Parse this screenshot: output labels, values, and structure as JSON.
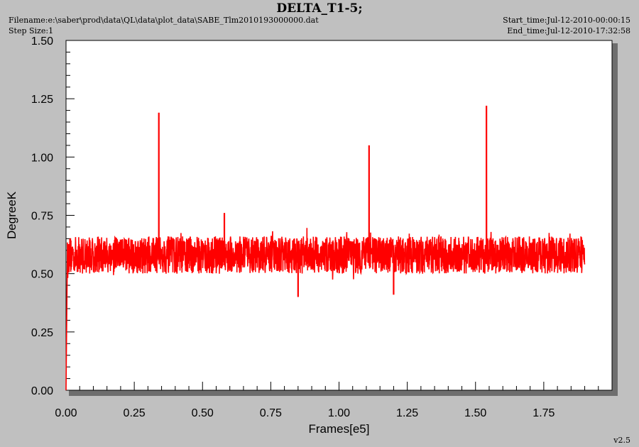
{
  "header": {
    "title": "DELTA_T1-5;",
    "filename": "Filename:e:\\saber\\prod\\data\\QL\\data\\plot_data\\SABE_Tlm2010193000000.dat",
    "step_size": "Step Size:1",
    "start_time": "Start_time:Jul-12-2010-00:00:15",
    "end_time": "End_time:Jul-12-2010-17:32:58",
    "version": "v2.5"
  },
  "colors": {
    "background": "#c0c0c0",
    "plot_area": "#ffffff",
    "series": "#ff0000",
    "shadow": "#6e6e6e"
  },
  "chart_data": {
    "type": "line",
    "title": "DELTA_T1-5;",
    "xlabel": "Frames[e5]",
    "ylabel": "DegreeK",
    "xlim": [
      0,
      2.0
    ],
    "ylim": [
      0,
      1.5
    ],
    "x_ticks": [
      "0.00",
      "0.25",
      "0.50",
      "0.75",
      "1.00",
      "1.25",
      "1.50",
      "1.75"
    ],
    "y_ticks": [
      "0.00",
      "0.25",
      "0.50",
      "0.75",
      "1.00",
      "1.25",
      "1.50"
    ],
    "grid": false,
    "legend": "none",
    "series": [
      {
        "color": "#ff0000",
        "x_range": [
          0.005,
          1.9
        ],
        "baseline_center": 0.59,
        "noise_band": [
          0.5,
          0.66
        ],
        "noise_extreme": [
          0.47,
          0.7
        ],
        "start_value": 0.0,
        "spikes": [
          {
            "x": 0.34,
            "y": 1.19
          },
          {
            "x": 0.58,
            "y": 0.76
          },
          {
            "x": 0.85,
            "y": 0.4
          },
          {
            "x": 1.11,
            "y": 1.05
          },
          {
            "x": 1.2,
            "y": 0.41
          },
          {
            "x": 1.54,
            "y": 1.22
          }
        ]
      }
    ]
  }
}
